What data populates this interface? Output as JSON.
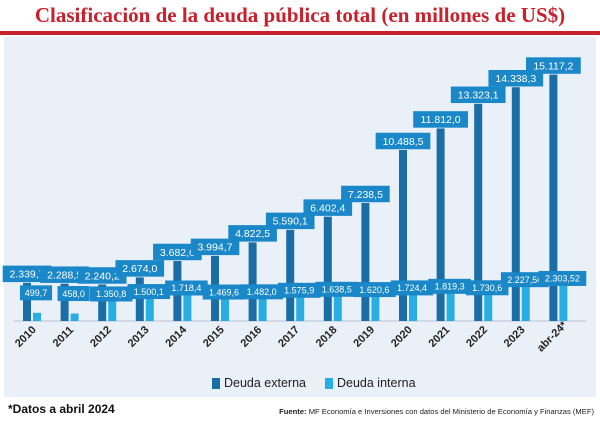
{
  "chart_data": {
    "type": "bar",
    "title": "Clasificación de la deuda pública total (en millones de US$)",
    "categories": [
      "2010",
      "2011",
      "2012",
      "2013",
      "2014",
      "2015",
      "2016",
      "2017",
      "2018",
      "2019",
      "2020",
      "2021",
      "2022",
      "2023",
      "abr-24*"
    ],
    "series": [
      {
        "name": "Deuda externa",
        "color": "#1a6ea5",
        "values": [
          2339.7,
          2288.5,
          2240.2,
          2674.0,
          3682.0,
          3994.7,
          4822.5,
          5590.1,
          6402.4,
          7238.5,
          10488.5,
          11812.0,
          13323.1,
          14338.3,
          15117.2
        ],
        "labels": [
          "2.339,7",
          "2.288,5",
          "2.240,2",
          "2.674,0",
          "3.682,0",
          "3.994,7",
          "4.822,5",
          "5.590,1",
          "6.402,4",
          "7.238,5",
          "10.488,5",
          "11.812,0",
          "13.323,1",
          "14.338,3",
          "15.117,2"
        ]
      },
      {
        "name": "Deuda interna",
        "color": "#29aee3",
        "values": [
          499.7,
          458.0,
          1350.8,
          1500.1,
          1718.4,
          1469.6,
          1482.0,
          1575.9,
          1638.5,
          1620.6,
          1724.4,
          1819.3,
          1730.6,
          2227.56,
          2303.52
        ],
        "labels": [
          "499,7",
          "458,0",
          "1.350,8",
          "1.500,1",
          "1.718,4",
          "1.469,6",
          "1.482,0",
          "1.575,9",
          "1.638,5",
          "1.620,6",
          "1.724,4",
          "1.819,3",
          "1.730,6",
          "2.227,56",
          "2.303,52"
        ]
      }
    ],
    "ylim": [
      0,
      16500
    ],
    "grid": false,
    "legend_position": "bottom-center"
  },
  "footnote": "*Datos a abril 2024",
  "source": {
    "label": "Fuente:",
    "text": "MF Economía e Inversiones con datos del Ministerio de Economía y Finanzas (MEF)"
  },
  "colors": {
    "title": "#c8202c",
    "panel": "#eaf0f7",
    "label_fill": "#1a87c8"
  }
}
